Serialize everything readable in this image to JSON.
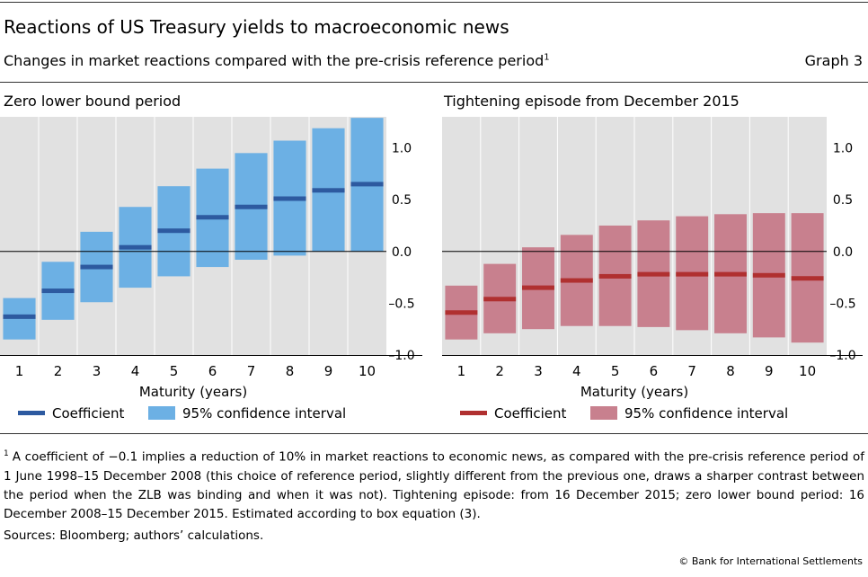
{
  "header": {
    "title": "Reactions of US Treasury yields to macroeconomic news",
    "subtitle": "Changes in market reactions compared with the pre-crisis reference period",
    "subtitle_footnote_mark": "1",
    "graph_number": "Graph 3"
  },
  "colors": {
    "zlb_interval": "#6cb0e4",
    "zlb_coefficient": "#2d5aa0",
    "tight_interval": "#c8808e",
    "tight_coefficient": "#b03030",
    "plot_background": "#e1e1e1"
  },
  "chart_data": [
    {
      "type": "bar",
      "title": "Zero lower bound period",
      "xlabel": "Maturity (years)",
      "ylabel": "",
      "categories": [
        "1",
        "2",
        "3",
        "4",
        "5",
        "6",
        "7",
        "8",
        "9",
        "10"
      ],
      "ylim": [
        -1.0,
        1.3
      ],
      "yticks": [
        1.0,
        0.5,
        0.0,
        -0.5,
        -1.0
      ],
      "ytick_labels": [
        "1.0",
        "0.5",
        "0.0",
        "–0.5",
        "–1.0"
      ],
      "grid": true,
      "legend_position": "bottom",
      "series": [
        {
          "name": "Coefficient",
          "values": [
            -0.63,
            -0.38,
            -0.15,
            0.04,
            0.2,
            0.33,
            0.43,
            0.51,
            0.59,
            0.65
          ]
        },
        {
          "name": "95% confidence interval",
          "low": [
            -0.85,
            -0.66,
            -0.49,
            -0.35,
            -0.24,
            -0.15,
            -0.08,
            -0.04,
            0.0,
            0.0
          ],
          "high": [
            -0.45,
            -0.1,
            0.19,
            0.43,
            0.63,
            0.8,
            0.95,
            1.07,
            1.19,
            1.29
          ]
        }
      ]
    },
    {
      "type": "bar",
      "title": "Tightening episode from December 2015",
      "xlabel": "Maturity (years)",
      "ylabel": "",
      "categories": [
        "1",
        "2",
        "3",
        "4",
        "5",
        "6",
        "7",
        "8",
        "9",
        "10"
      ],
      "ylim": [
        -1.0,
        1.3
      ],
      "yticks": [
        1.0,
        0.5,
        0.0,
        -0.5,
        -1.0
      ],
      "ytick_labels": [
        "1.0",
        "0.5",
        "0.0",
        "–0.5",
        "–1.0"
      ],
      "grid": true,
      "legend_position": "bottom",
      "series": [
        {
          "name": "Coefficient",
          "values": [
            -0.59,
            -0.46,
            -0.35,
            -0.28,
            -0.24,
            -0.22,
            -0.22,
            -0.22,
            -0.23,
            -0.26
          ]
        },
        {
          "name": "95% confidence interval",
          "low": [
            -0.85,
            -0.79,
            -0.75,
            -0.72,
            -0.72,
            -0.73,
            -0.76,
            -0.79,
            -0.83,
            -0.88
          ],
          "high": [
            -0.33,
            -0.12,
            0.04,
            0.16,
            0.25,
            0.3,
            0.34,
            0.36,
            0.37,
            0.37
          ]
        }
      ]
    }
  ],
  "footnote": {
    "mark": "1",
    "text": "A coefficient of −0.1 implies a reduction of 10% in market reactions to economic news, as compared with the pre-crisis reference period of 1 June 1998–15 December 2008 (this choice of reference period, slightly different from the previous one, draws a sharper contrast between the period when the ZLB was binding and when it was not). Tightening episode: from 16 December 2015; zero lower bound period: 16 December 2008–15 December 2015. Estimated according to box equation (3)."
  },
  "sources": "Sources: Bloomberg; authors’ calculations.",
  "copyright": "© Bank for International Settlements"
}
